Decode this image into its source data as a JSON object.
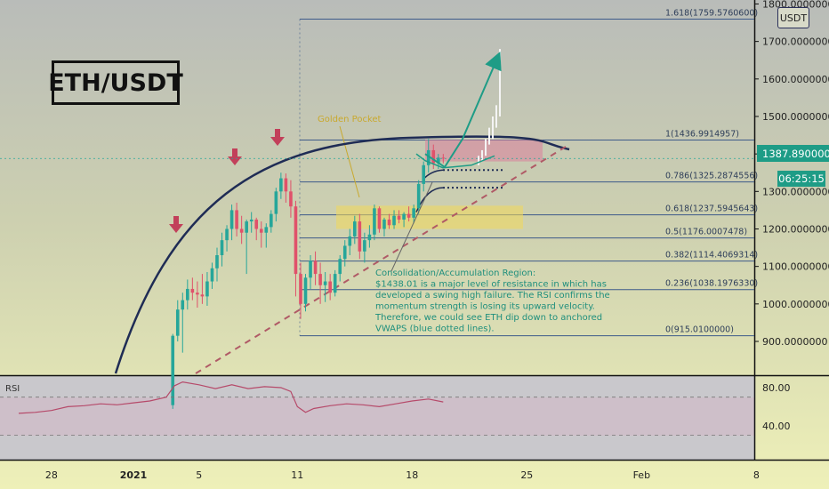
{
  "symbol_title": "ETH/USDT",
  "currency": "USDT",
  "current_price": "1387.8900000",
  "countdown": "06:25:15",
  "rsi_label": "RSI",
  "chart_data": {
    "type": "candlestick",
    "price_axis": {
      "ticks": [
        {
          "value": 900,
          "label": "900.0000000"
        },
        {
          "value": 1000,
          "label": "1000.0000000"
        },
        {
          "value": 1100,
          "label": "1100.0000000"
        },
        {
          "value": 1200,
          "label": "1200.0000000"
        },
        {
          "value": 1300,
          "label": "1300.0000000"
        },
        {
          "value": 1400,
          "label": "1400.0000000"
        },
        {
          "value": 1500,
          "label": "1500.0000000"
        },
        {
          "value": 1600,
          "label": "1600.0000000"
        },
        {
          "value": 1700,
          "label": "1700.0000000"
        },
        {
          "value": 1800,
          "label": "1800.0000000"
        }
      ]
    },
    "time_axis": {
      "ticks": [
        {
          "day": -4,
          "label": "28",
          "bold": false
        },
        {
          "day": 1,
          "label": "2021",
          "bold": true
        },
        {
          "day": 5,
          "label": "5",
          "bold": false
        },
        {
          "day": 11,
          "label": "11",
          "bold": false
        },
        {
          "day": 18,
          "label": "18",
          "bold": false
        },
        {
          "day": 25,
          "label": "25",
          "bold": false
        },
        {
          "day": 32,
          "label": "Feb",
          "bold": false
        },
        {
          "day": 39,
          "label": "8",
          "bold": false
        }
      ]
    },
    "rsi_axis": {
      "ticks": [
        {
          "value": 80,
          "label": "80.00"
        },
        {
          "value": 40,
          "label": "40.00"
        }
      ]
    },
    "fib_levels": [
      {
        "level": "1.618",
        "price": 1759.57606,
        "label": "1.618(1759.5760600)"
      },
      {
        "level": "1",
        "price": 1436.9914957,
        "label": "1(1436.9914957)"
      },
      {
        "level": "0.786",
        "price": 1325.2874556,
        "label": "0.786(1325.2874556)"
      },
      {
        "level": "0.618",
        "price": 1237.5945643,
        "label": "0.618(1237.5945643)"
      },
      {
        "level": "0.5",
        "price": 1176.0007478,
        "label": "0.5(1176.0007478)"
      },
      {
        "level": "0.382",
        "price": 1114.4069314,
        "label": "0.382(1114.4069314)"
      },
      {
        "level": "0.236",
        "price": 1038.197633,
        "label": "0.236(1038.1976330)"
      },
      {
        "level": "0",
        "price": 915.01,
        "label": "0(915.0100000)"
      }
    ],
    "annotations": {
      "golden_pocket": "Golden Pocket",
      "note_lines": [
        "Consolidation/Accumulation Region:",
        "$1438.01 is a major level of resistance in which has",
        "developed a swing high failure. The RSI confirms the",
        "momentum strength is losing its upward velocity.",
        "Therefore, we could see ETH dip down to anchored",
        "VWAPS (blue dotted lines)."
      ]
    },
    "candles": [
      {
        "d": 3.4,
        "o": 730,
        "h": 920,
        "l": 720,
        "c": 915
      },
      {
        "d": 3.7,
        "o": 915,
        "h": 1010,
        "l": 900,
        "c": 985
      },
      {
        "d": 4.0,
        "o": 985,
        "h": 1030,
        "l": 870,
        "c": 1010
      },
      {
        "d": 4.3,
        "o": 1010,
        "h": 1065,
        "l": 985,
        "c": 1040
      },
      {
        "d": 4.6,
        "o": 1040,
        "h": 1070,
        "l": 1010,
        "c": 1030
      },
      {
        "d": 4.9,
        "o": 1030,
        "h": 1060,
        "l": 990,
        "c": 1025
      },
      {
        "d": 5.2,
        "o": 1025,
        "h": 1080,
        "l": 1000,
        "c": 1020
      },
      {
        "d": 5.5,
        "o": 1020,
        "h": 1085,
        "l": 995,
        "c": 1060
      },
      {
        "d": 5.8,
        "o": 1060,
        "h": 1110,
        "l": 1040,
        "c": 1095
      },
      {
        "d": 6.1,
        "o": 1095,
        "h": 1150,
        "l": 1060,
        "c": 1130
      },
      {
        "d": 6.4,
        "o": 1130,
        "h": 1190,
        "l": 1100,
        "c": 1170
      },
      {
        "d": 6.7,
        "o": 1170,
        "h": 1210,
        "l": 1140,
        "c": 1200
      },
      {
        "d": 7.0,
        "o": 1200,
        "h": 1265,
        "l": 1170,
        "c": 1250
      },
      {
        "d": 7.3,
        "o": 1250,
        "h": 1270,
        "l": 1180,
        "c": 1200
      },
      {
        "d": 7.6,
        "o": 1200,
        "h": 1235,
        "l": 1160,
        "c": 1190
      },
      {
        "d": 7.9,
        "o": 1190,
        "h": 1225,
        "l": 1080,
        "c": 1220
      },
      {
        "d": 8.2,
        "o": 1220,
        "h": 1245,
        "l": 1190,
        "c": 1225
      },
      {
        "d": 8.5,
        "o": 1225,
        "h": 1230,
        "l": 1170,
        "c": 1200
      },
      {
        "d": 8.8,
        "o": 1200,
        "h": 1220,
        "l": 1150,
        "c": 1190
      },
      {
        "d": 9.1,
        "o": 1190,
        "h": 1215,
        "l": 1150,
        "c": 1205
      },
      {
        "d": 9.4,
        "o": 1205,
        "h": 1250,
        "l": 1190,
        "c": 1240
      },
      {
        "d": 9.7,
        "o": 1240,
        "h": 1310,
        "l": 1220,
        "c": 1300
      },
      {
        "d": 10.0,
        "o": 1300,
        "h": 1350,
        "l": 1280,
        "c": 1335
      },
      {
        "d": 10.3,
        "o": 1335,
        "h": 1348,
        "l": 1270,
        "c": 1300
      },
      {
        "d": 10.6,
        "o": 1300,
        "h": 1330,
        "l": 1230,
        "c": 1260
      },
      {
        "d": 10.9,
        "o": 1260,
        "h": 1275,
        "l": 1020,
        "c": 1080
      },
      {
        "d": 11.2,
        "o": 1080,
        "h": 1110,
        "l": 960,
        "c": 1000
      },
      {
        "d": 11.5,
        "o": 1000,
        "h": 1080,
        "l": 980,
        "c": 1070
      },
      {
        "d": 11.8,
        "o": 1070,
        "h": 1130,
        "l": 1040,
        "c": 1115
      },
      {
        "d": 12.1,
        "o": 1115,
        "h": 1140,
        "l": 1050,
        "c": 1080
      },
      {
        "d": 12.4,
        "o": 1080,
        "h": 1110,
        "l": 1000,
        "c": 1050
      },
      {
        "d": 12.7,
        "o": 1050,
        "h": 1085,
        "l": 1005,
        "c": 1060
      },
      {
        "d": 13.0,
        "o": 1060,
        "h": 1080,
        "l": 1010,
        "c": 1030
      },
      {
        "d": 13.3,
        "o": 1030,
        "h": 1090,
        "l": 1020,
        "c": 1080
      },
      {
        "d": 13.6,
        "o": 1080,
        "h": 1130,
        "l": 1060,
        "c": 1120
      },
      {
        "d": 13.9,
        "o": 1120,
        "h": 1170,
        "l": 1100,
        "c": 1155
      },
      {
        "d": 14.2,
        "o": 1155,
        "h": 1200,
        "l": 1130,
        "c": 1180
      },
      {
        "d": 14.5,
        "o": 1180,
        "h": 1235,
        "l": 1160,
        "c": 1220
      },
      {
        "d": 14.8,
        "o": 1220,
        "h": 1240,
        "l": 1120,
        "c": 1140
      },
      {
        "d": 15.1,
        "o": 1140,
        "h": 1190,
        "l": 1110,
        "c": 1170
      },
      {
        "d": 15.4,
        "o": 1170,
        "h": 1210,
        "l": 1150,
        "c": 1185
      },
      {
        "d": 15.7,
        "o": 1185,
        "h": 1265,
        "l": 1170,
        "c": 1255
      },
      {
        "d": 16.0,
        "o": 1255,
        "h": 1260,
        "l": 1190,
        "c": 1200
      },
      {
        "d": 16.3,
        "o": 1200,
        "h": 1230,
        "l": 1180,
        "c": 1225
      },
      {
        "d": 16.6,
        "o": 1225,
        "h": 1240,
        "l": 1200,
        "c": 1210
      },
      {
        "d": 16.9,
        "o": 1210,
        "h": 1250,
        "l": 1200,
        "c": 1235
      },
      {
        "d": 17.2,
        "o": 1235,
        "h": 1250,
        "l": 1215,
        "c": 1225
      },
      {
        "d": 17.5,
        "o": 1225,
        "h": 1245,
        "l": 1205,
        "c": 1240
      },
      {
        "d": 17.8,
        "o": 1240,
        "h": 1260,
        "l": 1220,
        "c": 1230
      },
      {
        "d": 18.1,
        "o": 1230,
        "h": 1265,
        "l": 1215,
        "c": 1255
      },
      {
        "d": 18.4,
        "o": 1255,
        "h": 1330,
        "l": 1240,
        "c": 1320
      },
      {
        "d": 18.7,
        "o": 1320,
        "h": 1380,
        "l": 1300,
        "c": 1370
      },
      {
        "d": 19.0,
        "o": 1370,
        "h": 1440,
        "l": 1350,
        "c": 1410
      },
      {
        "d": 19.3,
        "o": 1410,
        "h": 1425,
        "l": 1360,
        "c": 1375
      },
      {
        "d": 19.6,
        "o": 1375,
        "h": 1400,
        "l": 1360,
        "c": 1390
      },
      {
        "d": 19.9,
        "o": 1390,
        "h": 1400,
        "l": 1375,
        "c": 1388
      }
    ],
    "rsi": [
      {
        "d": -6,
        "v": 53
      },
      {
        "d": -5,
        "v": 54
      },
      {
        "d": -4,
        "v": 56
      },
      {
        "d": -3,
        "v": 60
      },
      {
        "d": -2,
        "v": 61
      },
      {
        "d": -1,
        "v": 63
      },
      {
        "d": 0,
        "v": 62
      },
      {
        "d": 1,
        "v": 64
      },
      {
        "d": 2,
        "v": 66
      },
      {
        "d": 3,
        "v": 70
      },
      {
        "d": 3.5,
        "v": 82
      },
      {
        "d": 4,
        "v": 86
      },
      {
        "d": 5,
        "v": 83
      },
      {
        "d": 6,
        "v": 79
      },
      {
        "d": 7,
        "v": 83
      },
      {
        "d": 8,
        "v": 79
      },
      {
        "d": 9,
        "v": 81
      },
      {
        "d": 10,
        "v": 80
      },
      {
        "d": 10.6,
        "v": 76
      },
      {
        "d": 11,
        "v": 60
      },
      {
        "d": 11.5,
        "v": 54
      },
      {
        "d": 12,
        "v": 58
      },
      {
        "d": 13,
        "v": 61
      },
      {
        "d": 14,
        "v": 63
      },
      {
        "d": 15,
        "v": 62
      },
      {
        "d": 16,
        "v": 60
      },
      {
        "d": 17,
        "v": 63
      },
      {
        "d": 18,
        "v": 66
      },
      {
        "d": 19,
        "v": 68
      },
      {
        "d": 19.9,
        "v": 65
      }
    ]
  }
}
